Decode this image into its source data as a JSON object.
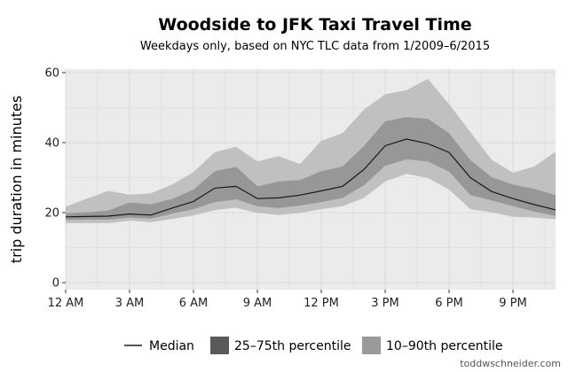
{
  "chart_data": {
    "type": "area",
    "title": "Woodside to JFK Taxi Travel Time",
    "subtitle": "Weekdays only, based on NYC TLC data from 1/2009–6/2015",
    "xlabel": "",
    "ylabel": "trip duration in minutes",
    "x_tick_labels": [
      "12 AM",
      "3 AM",
      "6 AM",
      "9 AM",
      "12 PM",
      "3 PM",
      "6 PM",
      "9 PM"
    ],
    "x_tick_values": [
      0,
      3,
      6,
      9,
      12,
      15,
      18,
      21
    ],
    "y_ticks": [
      0,
      20,
      40,
      60
    ],
    "xlim": [
      0,
      23
    ],
    "ylim": [
      -2,
      61
    ],
    "grid": true,
    "legend_position": "bottom",
    "x": [
      0,
      1,
      2,
      3,
      4,
      5,
      6,
      7,
      8,
      9,
      10,
      11,
      12,
      13,
      14,
      15,
      16,
      17,
      18,
      19,
      20,
      21,
      22,
      23
    ],
    "series": [
      {
        "name": "Median",
        "kind": "line",
        "values": [
          18.8,
          18.9,
          19.0,
          19.6,
          19.3,
          21.3,
          23.2,
          27.0,
          27.5,
          24.0,
          24.2,
          25.0,
          26.2,
          27.5,
          32.3,
          39.1,
          41.0,
          39.7,
          37.2,
          30.0,
          26.0,
          24.0,
          22.3,
          20.8
        ]
      },
      {
        "name": "25–75th percentile",
        "kind": "band",
        "lower": [
          17.9,
          18.0,
          18.0,
          18.6,
          18.3,
          19.7,
          21.0,
          23.0,
          23.8,
          21.8,
          21.3,
          22.0,
          23.0,
          24.2,
          27.8,
          33.4,
          35.2,
          34.6,
          31.7,
          25.0,
          23.5,
          21.8,
          20.3,
          19.0
        ],
        "upper": [
          19.8,
          20.1,
          20.6,
          22.9,
          22.4,
          23.9,
          26.6,
          31.8,
          33.1,
          27.5,
          28.9,
          29.3,
          31.8,
          33.2,
          39.0,
          46.1,
          47.3,
          46.8,
          42.7,
          35.0,
          30.1,
          28.0,
          26.8,
          25.0
        ]
      },
      {
        "name": "10–90th percentile",
        "kind": "band",
        "lower": [
          17.0,
          17.0,
          17.0,
          17.7,
          17.3,
          18.2,
          19.2,
          20.7,
          21.4,
          19.9,
          19.3,
          19.9,
          21.0,
          21.8,
          24.2,
          28.9,
          31.1,
          29.9,
          26.6,
          21.0,
          20.1,
          18.8,
          18.6,
          18.1
        ],
        "upper": [
          21.7,
          24.0,
          26.2,
          25.1,
          25.5,
          28.0,
          31.6,
          37.3,
          38.8,
          34.6,
          36.1,
          33.9,
          40.5,
          42.7,
          49.4,
          53.8,
          55.0,
          58.2,
          51.0,
          43.0,
          35.1,
          31.4,
          33.2,
          37.4
        ]
      }
    ],
    "colors": {
      "panel_background": "#ebebeb",
      "grid": "#d9d9d9",
      "band_outer": "#c0c0c0",
      "band_inner": "#8f8f8f",
      "median_line": "#1a1a1a"
    },
    "credit": "toddwschneider.com"
  }
}
